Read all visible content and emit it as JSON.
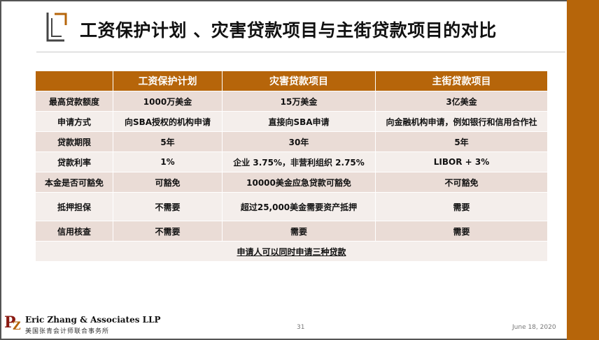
{
  "slide": {
    "title": "工资保护计划 、灾害贷款项目与主街贷款项目的对比",
    "page_number": "31",
    "date": "June 18, 2020",
    "accent_color": "#b6650a"
  },
  "firm": {
    "logo_letters": "PZ",
    "name": "Eric Zhang & Associates LLP",
    "name_cn": "美国张青会计师联合事务所"
  },
  "table": {
    "headers": [
      "",
      "工资保护计划",
      "灾害贷款项目",
      "主街贷款项目"
    ],
    "rows": [
      {
        "label": "最高贷款额度",
        "cells": [
          "1000万美金",
          "15万美金",
          "3亿美金"
        ]
      },
      {
        "label": "申请方式",
        "cells": [
          "向SBA授权的机构申请",
          "直接向SBA申请",
          "向金融机构申请，例如银行和信用合作社"
        ]
      },
      {
        "label": "贷款期限",
        "cells": [
          "5年",
          "30年",
          "5年"
        ]
      },
      {
        "label": "贷款利率",
        "cells": [
          "1%",
          "企业 3.75%，非营利组织 2.75%",
          "LIBOR + 3%"
        ]
      },
      {
        "label": "本金是否可豁免",
        "cells": [
          "可豁免",
          "10000美金应急贷款可豁免",
          "不可豁免"
        ]
      },
      {
        "label": "抵押担保",
        "cells": [
          "不需要",
          "超过25,000美金需要资产抵押",
          "需要"
        ]
      },
      {
        "label": "信用核查",
        "cells": [
          "不需要",
          "需要",
          "需要"
        ]
      }
    ],
    "note": "申请人可以同时申请三种贷款"
  }
}
